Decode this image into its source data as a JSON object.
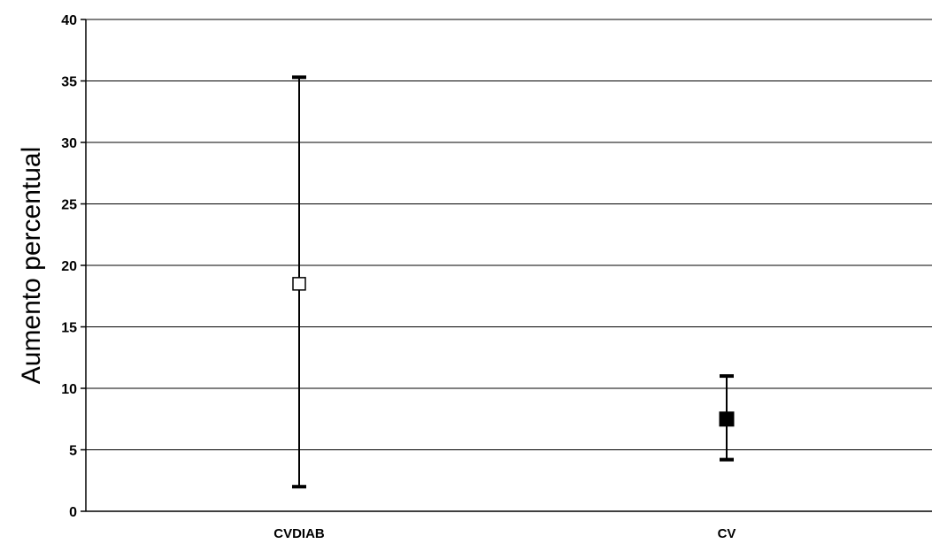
{
  "chart_data": {
    "type": "scatter",
    "title": "",
    "xlabel": "",
    "ylabel": "Aumento percentual",
    "categories": [
      "CVDIAB",
      "CV"
    ],
    "points": [
      {
        "category": "CVDIAB",
        "value": 18.5,
        "low": 2,
        "high": 35.3,
        "marker": "open-square"
      },
      {
        "category": "CV",
        "value": 7.5,
        "low": 4.2,
        "high": 11
      }
    ],
    "ylim": [
      0,
      40
    ],
    "yticks": [
      0,
      5,
      10,
      15,
      20,
      25,
      30,
      35,
      40
    ],
    "grid": true
  }
}
